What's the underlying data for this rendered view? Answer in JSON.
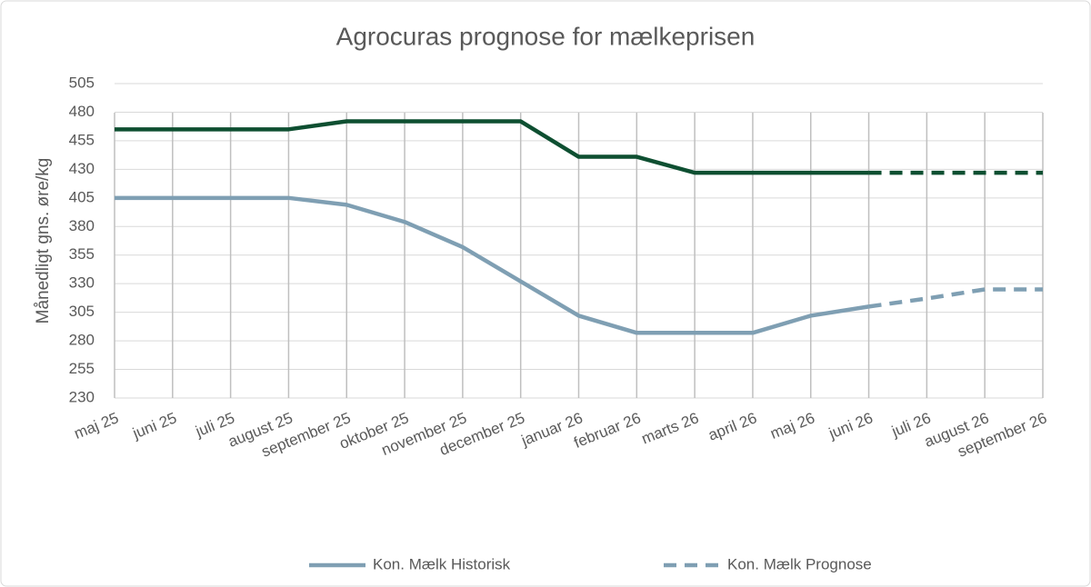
{
  "chart_data": {
    "type": "line",
    "title": "Agrocuras prognose for mælkeprisen",
    "y_label": "Månedligt gns. øre/kg",
    "categories": [
      "maj 25",
      "juni 25",
      "juli 25",
      "august 25",
      "september 25",
      "oktober 25",
      "november 25",
      "december 25",
      "januar 26",
      "februar 26",
      "marts 26",
      "april 26",
      "maj 26",
      "juni 26",
      "juli 26",
      "august 26",
      "september 26"
    ],
    "series": [
      {
        "color": "#0e4f31",
        "dashed": false,
        "values": [
          465,
          465,
          465,
          465,
          472,
          472,
          472,
          472,
          441,
          441,
          427,
          427,
          427,
          427,
          null,
          null,
          null
        ]
      },
      {
        "color": "#0e4f31",
        "dashed": true,
        "values": [
          null,
          null,
          null,
          null,
          null,
          null,
          null,
          null,
          null,
          null,
          null,
          null,
          null,
          427,
          427,
          427,
          427
        ]
      },
      {
        "name": "Kon. Mælk Historisk",
        "color": "#7f9fb3",
        "dashed": false,
        "values": [
          405,
          405,
          405,
          405,
          399,
          384,
          362,
          332,
          302,
          287,
          287,
          287,
          302,
          310,
          null,
          null,
          null
        ]
      },
      {
        "name": "Kon. Mælk Prognose",
        "color": "#7f9fb3",
        "dashed": true,
        "values": [
          null,
          null,
          null,
          null,
          null,
          null,
          null,
          null,
          null,
          null,
          null,
          null,
          null,
          310,
          317,
          325,
          325
        ]
      }
    ],
    "ylim": [
      230,
      505
    ],
    "yticks": [
      230,
      255,
      280,
      305,
      330,
      355,
      380,
      405,
      430,
      455,
      480,
      505
    ],
    "grid": true
  }
}
